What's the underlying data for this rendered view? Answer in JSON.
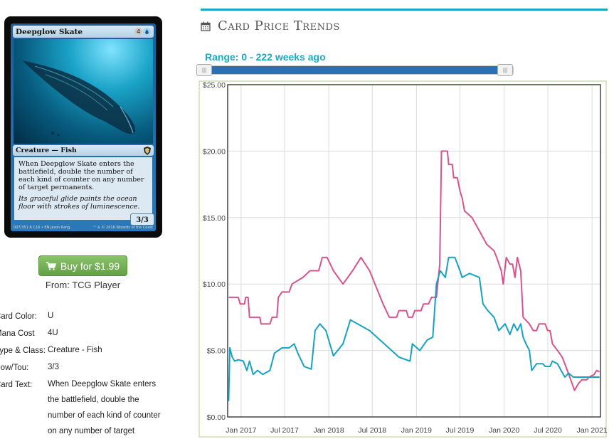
{
  "card": {
    "name": "Deepglow Skate",
    "mana": [
      "4",
      "U"
    ],
    "type_line": "Creature — Fish",
    "rules_text": "When Deepglow Skate enters the battlefield, double the number of each kind of counter on any number of target permanents.",
    "flavor_text": "Its graceful glide paints the ocean floor with strokes of luminescence.",
    "pt": "3/3",
    "collector": "007/351 R",
    "set_line": "C16 • EN",
    "artist": "Jason Kang",
    "copyright": "™ & © 2016 Wizards of the Coast"
  },
  "buy": {
    "label": "Buy for $1.99",
    "icon": "cart-icon",
    "from": "From: TCG Player"
  },
  "details": [
    {
      "label": "Card Color:",
      "value": "U"
    },
    {
      "label": "Mana Cost",
      "value": "4U"
    },
    {
      "label": "Type & Class:",
      "value": "Creature - Fish"
    },
    {
      "label": "Pow/Tou:",
      "value": "3/3"
    },
    {
      "label": "Card Text:",
      "value": "When Deepglow Skate enters the battlefield, double the number of each kind of counter on any number of target"
    }
  ],
  "section": {
    "title": "Card Price Trends",
    "icon": "calendar-icon"
  },
  "range": {
    "label": "Range: 0 - 222 weeks ago",
    "min_weeks": 0,
    "max_weeks": 222
  },
  "chart_data": {
    "type": "line",
    "title": "",
    "xlabel": "",
    "ylabel": "",
    "ylim": [
      0,
      25
    ],
    "xlim": [
      "2016-11-06",
      "2021-02-05"
    ],
    "yticks": [
      "$0.00",
      "$5.00",
      "$10.00",
      "$15.00",
      "$20.00",
      "$25.00"
    ],
    "ytick_values": [
      0,
      5,
      10,
      15,
      20,
      25
    ],
    "xticks": [
      "Jan 2017",
      "Jul 2017",
      "Jan 2018",
      "Jul 2018",
      "Jan 2019",
      "Jul 2019",
      "Jan 2020",
      "Jul 2020",
      "Jan 2021"
    ],
    "xtick_dates": [
      "2017-01-01",
      "2017-07-01",
      "2018-01-01",
      "2018-07-01",
      "2019-01-01",
      "2019-07-01",
      "2020-01-01",
      "2020-07-01",
      "2021-01-01"
    ],
    "grid": true,
    "series": [
      {
        "color": "#d6548e",
        "points": [
          [
            "2016-11-10",
            9.0
          ],
          [
            "2016-12-20",
            9.0
          ],
          [
            "2016-12-28",
            8.5
          ],
          [
            "2017-01-15",
            8.5
          ],
          [
            "2017-01-20",
            9.0
          ],
          [
            "2017-01-30",
            9.0
          ],
          [
            "2017-02-05",
            7.5
          ],
          [
            "2017-03-20",
            7.5
          ],
          [
            "2017-03-25",
            7.0
          ],
          [
            "2017-05-01",
            7.0
          ],
          [
            "2017-05-10",
            7.5
          ],
          [
            "2017-05-30",
            7.5
          ],
          [
            "2017-06-05",
            9.0
          ],
          [
            "2017-06-20",
            9.4
          ],
          [
            "2017-07-20",
            9.4
          ],
          [
            "2017-08-01",
            10.0
          ],
          [
            "2017-09-15",
            10.5
          ],
          [
            "2017-10-15",
            11.0
          ],
          [
            "2017-11-20",
            11.0
          ],
          [
            "2017-12-05",
            12.0
          ],
          [
            "2017-12-25",
            12.0
          ],
          [
            "2018-01-20",
            11.0
          ],
          [
            "2018-03-01",
            10.0
          ],
          [
            "2018-04-10",
            11.0
          ],
          [
            "2018-05-15",
            12.0
          ],
          [
            "2018-06-20",
            11.0
          ],
          [
            "2018-08-15",
            8.5
          ],
          [
            "2018-09-10",
            7.5
          ],
          [
            "2018-10-10",
            7.5
          ],
          [
            "2018-10-20",
            8.0
          ],
          [
            "2018-11-20",
            8.0
          ],
          [
            "2018-11-28",
            7.5
          ],
          [
            "2018-12-15",
            7.5
          ],
          [
            "2018-12-25",
            8.0
          ],
          [
            "2019-01-20",
            8.0
          ],
          [
            "2019-01-30",
            8.5
          ],
          [
            "2019-02-20",
            8.5
          ],
          [
            "2019-03-05",
            9.0
          ],
          [
            "2019-03-25",
            9.0
          ],
          [
            "2019-04-08",
            11.5
          ],
          [
            "2019-04-15",
            20.0
          ],
          [
            "2019-05-10",
            20.0
          ],
          [
            "2019-05-15",
            19.0
          ],
          [
            "2019-05-30",
            19.0
          ],
          [
            "2019-06-05",
            18.0
          ],
          [
            "2019-06-20",
            18.0
          ],
          [
            "2019-07-01",
            17.0
          ],
          [
            "2019-07-10",
            16.5
          ],
          [
            "2019-07-20",
            15.5
          ],
          [
            "2019-08-20",
            15.0
          ],
          [
            "2019-09-20",
            14.0
          ],
          [
            "2019-10-20",
            13.0
          ],
          [
            "2019-11-20",
            12.5
          ],
          [
            "2019-12-01",
            12.0
          ],
          [
            "2019-12-20",
            11.0
          ],
          [
            "2019-12-28",
            10.0
          ],
          [
            "2020-01-10",
            12.0
          ],
          [
            "2020-01-25",
            11.5
          ],
          [
            "2020-02-05",
            11.5
          ],
          [
            "2020-02-15",
            10.5
          ],
          [
            "2020-02-25",
            12.0
          ],
          [
            "2020-03-10",
            11.0
          ],
          [
            "2020-03-20",
            7.5
          ],
          [
            "2020-04-15",
            7.0
          ],
          [
            "2020-05-01",
            6.5
          ],
          [
            "2020-05-15",
            6.5
          ],
          [
            "2020-05-25",
            7.0
          ],
          [
            "2020-06-20",
            7.0
          ],
          [
            "2020-06-30",
            6.5
          ],
          [
            "2020-07-10",
            6.5
          ],
          [
            "2020-07-20",
            5.5
          ],
          [
            "2020-08-10",
            5.0
          ],
          [
            "2020-08-30",
            4.5
          ],
          [
            "2020-09-20",
            3.5
          ],
          [
            "2020-10-10",
            2.5
          ],
          [
            "2020-10-20",
            2.0
          ],
          [
            "2020-11-05",
            2.5
          ],
          [
            "2020-11-20",
            2.8
          ],
          [
            "2020-12-10",
            2.8
          ],
          [
            "2020-12-20",
            3.0
          ],
          [
            "2021-01-10",
            3.2
          ],
          [
            "2021-01-20",
            3.5
          ],
          [
            "2021-02-01",
            3.4
          ]
        ]
      },
      {
        "color": "#17a2c2",
        "points": [
          [
            "2016-11-10",
            1.2
          ],
          [
            "2016-11-15",
            5.2
          ],
          [
            "2016-11-25",
            4.5
          ],
          [
            "2016-12-05",
            4.2
          ],
          [
            "2016-12-20",
            4.3
          ],
          [
            "2017-01-10",
            4.2
          ],
          [
            "2017-01-25",
            3.5
          ],
          [
            "2017-02-05",
            4.2
          ],
          [
            "2017-02-20",
            3.2
          ],
          [
            "2017-03-10",
            3.5
          ],
          [
            "2017-04-01",
            3.2
          ],
          [
            "2017-05-01",
            3.5
          ],
          [
            "2017-05-20",
            4.8
          ],
          [
            "2017-06-20",
            5.2
          ],
          [
            "2017-07-20",
            5.2
          ],
          [
            "2017-08-10",
            5.5
          ],
          [
            "2017-08-25",
            4.8
          ],
          [
            "2017-09-20",
            3.8
          ],
          [
            "2017-10-20",
            3.6
          ],
          [
            "2017-11-05",
            6.5
          ],
          [
            "2017-11-25",
            7.0
          ],
          [
            "2017-12-20",
            6.5
          ],
          [
            "2018-01-20",
            4.6
          ],
          [
            "2018-03-01",
            5.5
          ],
          [
            "2018-04-01",
            7.3
          ],
          [
            "2018-06-20",
            6.5
          ],
          [
            "2018-08-20",
            5.5
          ],
          [
            "2018-10-20",
            4.5
          ],
          [
            "2018-12-05",
            4.2
          ],
          [
            "2018-12-15",
            5.5
          ],
          [
            "2019-01-15",
            5.0
          ],
          [
            "2019-02-15",
            5.8
          ],
          [
            "2019-03-10",
            6.0
          ],
          [
            "2019-03-25",
            10.0
          ],
          [
            "2019-04-10",
            11.0
          ],
          [
            "2019-05-01",
            10.5
          ],
          [
            "2019-05-15",
            12.0
          ],
          [
            "2019-06-10",
            12.0
          ],
          [
            "2019-07-01",
            11.0
          ],
          [
            "2019-07-10",
            10.5
          ],
          [
            "2019-08-10",
            10.8
          ],
          [
            "2019-09-20",
            10.5
          ],
          [
            "2019-10-05",
            8.5
          ],
          [
            "2019-10-25",
            8.0
          ],
          [
            "2019-11-20",
            7.5
          ],
          [
            "2019-12-10",
            6.5
          ],
          [
            "2020-01-05",
            7.0
          ],
          [
            "2020-01-25",
            6.2
          ],
          [
            "2020-02-10",
            7.0
          ],
          [
            "2020-02-25",
            6.5
          ],
          [
            "2020-03-10",
            7.0
          ],
          [
            "2020-03-20",
            6.0
          ],
          [
            "2020-04-01",
            5.5
          ],
          [
            "2020-04-15",
            5.0
          ],
          [
            "2020-04-25",
            3.5
          ],
          [
            "2020-05-15",
            4.0
          ],
          [
            "2020-06-10",
            4.0
          ],
          [
            "2020-06-20",
            3.8
          ],
          [
            "2020-07-10",
            3.8
          ],
          [
            "2020-07-20",
            4.2
          ],
          [
            "2020-08-10",
            4.0
          ],
          [
            "2020-08-25",
            3.5
          ],
          [
            "2020-09-10",
            3.0
          ],
          [
            "2020-09-25",
            3.3
          ],
          [
            "2020-10-15",
            3.0
          ],
          [
            "2020-11-05",
            3.0
          ],
          [
            "2020-12-05",
            3.0
          ],
          [
            "2021-01-05",
            3.0
          ],
          [
            "2021-02-01",
            3.0
          ]
        ]
      }
    ]
  }
}
